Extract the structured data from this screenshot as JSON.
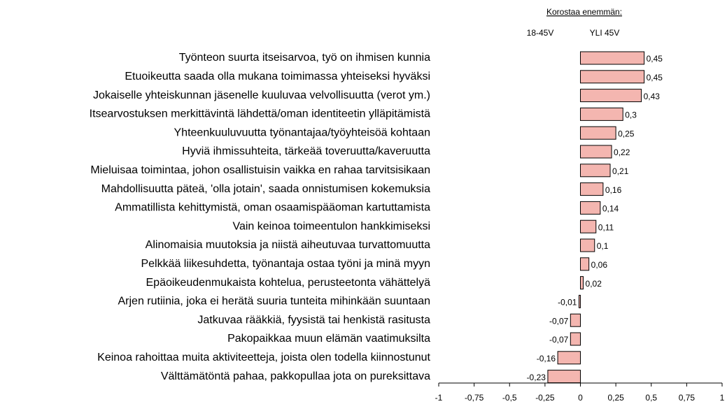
{
  "chart_data": {
    "type": "bar",
    "orientation": "horizontal",
    "annotation": "Korostaa enemmän:",
    "column_labels": [
      "18-45V",
      "YLI 45V"
    ],
    "categories": [
      "Työnteon suurta itseisarvoa, työ on ihmisen kunnia",
      "Etuoikeutta saada olla mukana toimimassa yhteiseksi hyväksi",
      "Jokaiselle yhteiskunnan jäsenelle kuuluvaa velvollisuutta (verot ym.)",
      "Itsearvostuksen merkittävintä lähdettä/oman identiteetin ylläpitämistä",
      "Yhteenkuuluvuutta työnantajaa/työyhteisöä kohtaan",
      "Hyviä ihmissuhteita, tärkeää toveruutta/kaveruutta",
      "Mieluisaa toimintaa, johon osallistuisin vaikka en rahaa tarvitsisikaan",
      "Mahdollisuutta päteä, 'olla jotain', saada onnistumisen kokemuksia",
      "Ammatillista kehittymistä, oman osaamispääoman kartuttamista",
      "Vain keinoa toimeentulon hankkimiseksi",
      "Alinomaisia muutoksia ja niistä aiheutuvaa turvattomuutta",
      "Pelkkää liikesuhdetta, työnantaja ostaa työni ja minä myyn",
      "Epäoikeudenmukaista kohtelua, perusteetonta vähättelyä",
      "Arjen rutiinia, joka ei herätä suuria tunteita mihinkään suuntaan",
      "Jatkuvaa rääkkiä, fyysistä tai henkistä rasitusta",
      "Pakopaikkaa muun elämän vaatimuksilta",
      "Keinoa rahoittaa muita aktiviteetteja, joista olen todella kiinnostunut",
      "Välttämätöntä pahaa, pakkopullaa jota on pureksittava"
    ],
    "values": [
      0.45,
      0.45,
      0.43,
      0.3,
      0.25,
      0.22,
      0.21,
      0.16,
      0.14,
      0.11,
      0.1,
      0.06,
      0.02,
      -0.01,
      -0.07,
      -0.07,
      -0.16,
      -0.23
    ],
    "value_labels": [
      "0,45",
      "0,45",
      "0,43",
      "0,3",
      "0,25",
      "0,22",
      "0,21",
      "0,16",
      "0,14",
      "0,11",
      "0,1",
      "0,06",
      "0,02",
      "-0,01",
      "-0,07",
      "-0,07",
      "-0,16",
      "-0,23"
    ],
    "color": "#f4b6b0",
    "xlim": [
      -1,
      1
    ],
    "xticks": [
      -1,
      {
        "value": -0.75,
        "label": "-0,75"
      },
      {
        "value": -0.5,
        "label": "-0,5"
      },
      {
        "value": -0.25,
        "label": "-0,25"
      },
      0,
      {
        "value": 0.25,
        "label": "0,25"
      },
      {
        "value": 0.5,
        "label": "0,5"
      },
      {
        "value": 0.75,
        "label": "0,75"
      },
      1
    ],
    "grid": false
  }
}
